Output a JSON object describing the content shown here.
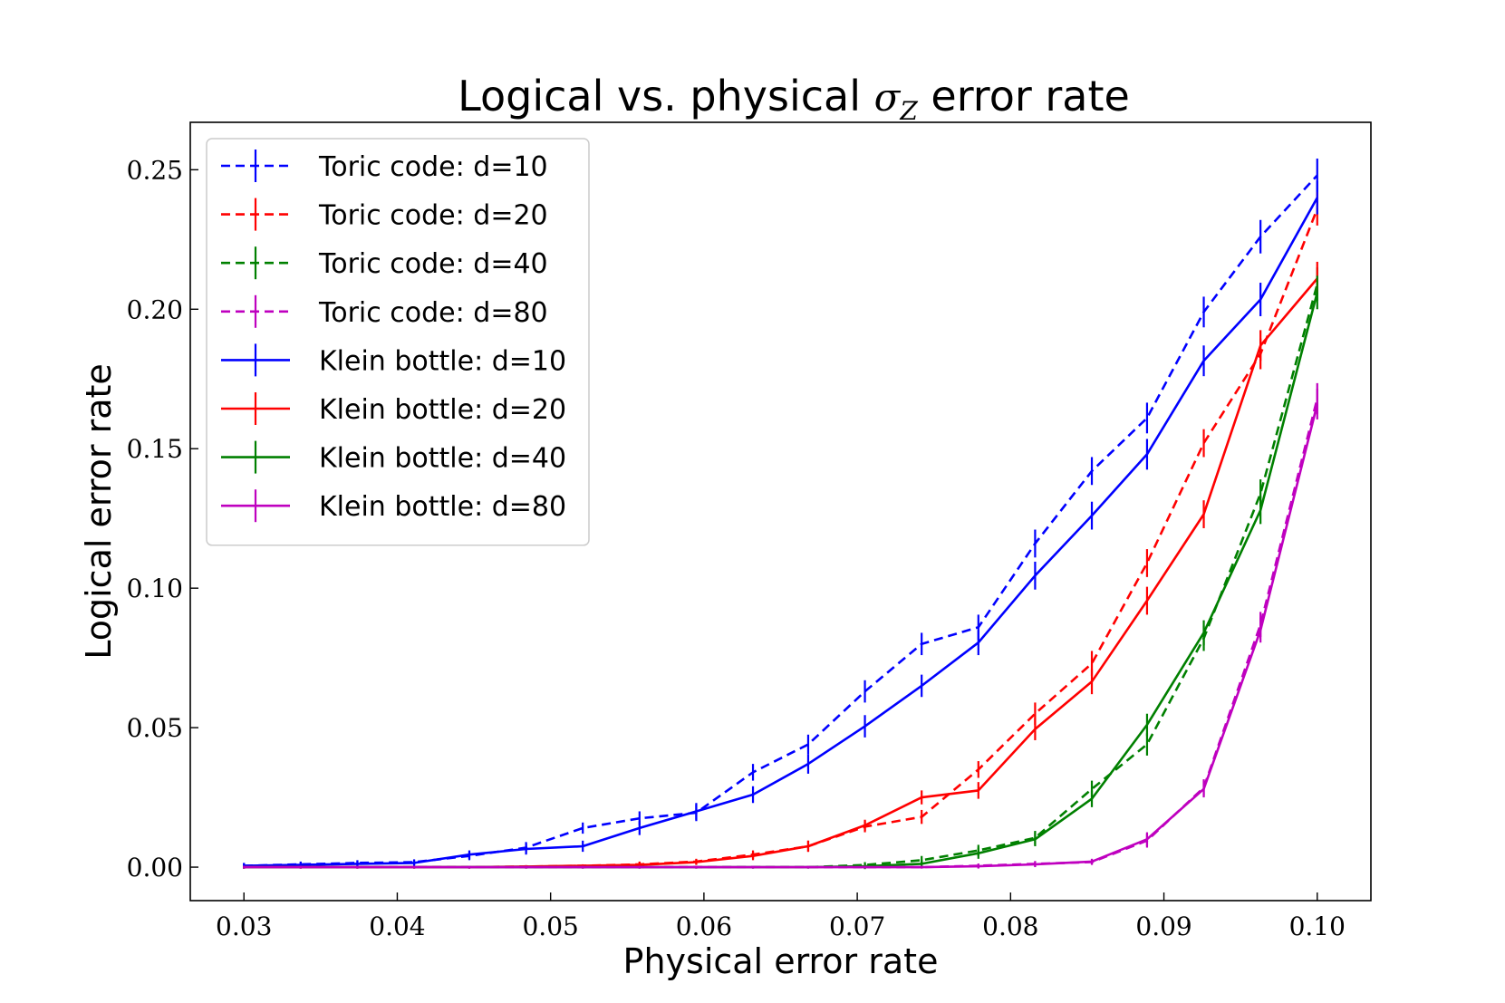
{
  "chart_data": {
    "type": "line",
    "title": {
      "prefix": "Logical vs. physical ",
      "symbol": "σ",
      "subscript": "Z",
      "suffix": " error rate"
    },
    "xlabel": "Physical error rate",
    "ylabel": "Logical error rate",
    "xlim": [
      0.0265,
      0.1035
    ],
    "ylim": [
      -0.012,
      0.267
    ],
    "xticks": [
      0.03,
      0.04,
      0.05,
      0.06,
      0.07,
      0.08,
      0.09,
      0.1
    ],
    "xtick_labels": [
      "0.03",
      "0.04",
      "0.05",
      "0.06",
      "0.07",
      "0.08",
      "0.09",
      "0.10"
    ],
    "yticks": [
      0.0,
      0.05,
      0.1,
      0.15,
      0.2,
      0.25
    ],
    "ytick_labels": [
      "0.00",
      "0.05",
      "0.10",
      "0.15",
      "0.20",
      "0.25"
    ],
    "legend_position": "upper-left",
    "x": [
      0.03,
      0.0337,
      0.0374,
      0.0411,
      0.0447,
      0.0484,
      0.0521,
      0.0558,
      0.0595,
      0.0632,
      0.0668,
      0.0705,
      0.0742,
      0.0779,
      0.0816,
      0.0853,
      0.0889,
      0.0926,
      0.0963,
      0.1
    ],
    "series": [
      {
        "name": "Toric code: d=10",
        "color": "#0000ff",
        "dash": true,
        "values": [
          0.0005,
          0.001,
          0.0015,
          0.0018,
          0.004,
          0.007,
          0.014,
          0.0175,
          0.0195,
          0.034,
          0.044,
          0.063,
          0.08,
          0.086,
          0.116,
          0.142,
          0.161,
          0.199,
          0.226,
          0.248
        ],
        "err": [
          0.001,
          0.001,
          0.001,
          0.001,
          0.0015,
          0.002,
          0.002,
          0.0025,
          0.003,
          0.003,
          0.0035,
          0.004,
          0.004,
          0.0045,
          0.005,
          0.005,
          0.0055,
          0.0055,
          0.006,
          0.006
        ]
      },
      {
        "name": "Toric code: d=20",
        "color": "#ff0000",
        "dash": true,
        "values": [
          0.0,
          0.0,
          0.0,
          0.0,
          0.0,
          0.0002,
          0.0005,
          0.001,
          0.002,
          0.0045,
          0.0075,
          0.0145,
          0.018,
          0.035,
          0.055,
          0.073,
          0.109,
          0.152,
          0.184,
          0.236
        ],
        "err": [
          0.0005,
          0.0005,
          0.0005,
          0.0005,
          0.0005,
          0.0005,
          0.0005,
          0.001,
          0.001,
          0.0015,
          0.002,
          0.002,
          0.0025,
          0.003,
          0.004,
          0.0045,
          0.005,
          0.005,
          0.0055,
          0.006
        ]
      },
      {
        "name": "Toric code: d=40",
        "color": "#008000",
        "dash": true,
        "values": [
          0.0,
          0.0,
          0.0,
          0.0,
          0.0,
          0.0,
          0.0,
          0.0,
          0.0,
          0.0,
          0.0,
          0.0008,
          0.0025,
          0.006,
          0.0105,
          0.028,
          0.044,
          0.082,
          0.134,
          0.209
        ],
        "err": [
          0.0005,
          0.0005,
          0.0005,
          0.0005,
          0.0005,
          0.0005,
          0.0005,
          0.0005,
          0.0005,
          0.0005,
          0.0005,
          0.001,
          0.0015,
          0.002,
          0.0025,
          0.003,
          0.004,
          0.0045,
          0.005,
          0.006
        ]
      },
      {
        "name": "Toric code: d=80",
        "color": "#bf00bf",
        "dash": true,
        "values": [
          0.0,
          0.0,
          0.0,
          0.0,
          0.0,
          0.0,
          0.0,
          0.0,
          0.0,
          0.0,
          0.0,
          0.0,
          0.0,
          0.0005,
          0.0012,
          0.0018,
          0.0095,
          0.0285,
          0.087,
          0.168
        ],
        "err": [
          0.0005,
          0.0005,
          0.0005,
          0.0005,
          0.0005,
          0.0005,
          0.0005,
          0.0005,
          0.0005,
          0.0005,
          0.0005,
          0.0005,
          0.0005,
          0.0008,
          0.001,
          0.001,
          0.0025,
          0.003,
          0.0045,
          0.0055
        ]
      },
      {
        "name": "Klein bottle: d=10",
        "color": "#0000ff",
        "dash": false,
        "values": [
          0.0005,
          0.0008,
          0.0012,
          0.0015,
          0.0045,
          0.0065,
          0.0075,
          0.014,
          0.02,
          0.026,
          0.037,
          0.0505,
          0.065,
          0.0805,
          0.1045,
          0.126,
          0.148,
          0.1815,
          0.2035,
          0.24
        ],
        "err": [
          0.001,
          0.001,
          0.001,
          0.001,
          0.0015,
          0.002,
          0.002,
          0.0025,
          0.003,
          0.003,
          0.0035,
          0.004,
          0.004,
          0.0045,
          0.005,
          0.005,
          0.0055,
          0.0055,
          0.006,
          0.006
        ]
      },
      {
        "name": "Klein bottle: d=20",
        "color": "#ff0000",
        "dash": false,
        "values": [
          0.0,
          0.0,
          0.0,
          0.0,
          0.0,
          0.0002,
          0.0005,
          0.0008,
          0.0018,
          0.004,
          0.0075,
          0.015,
          0.025,
          0.0275,
          0.0495,
          0.0665,
          0.0955,
          0.1265,
          0.187,
          0.211
        ],
        "err": [
          0.0005,
          0.0005,
          0.0005,
          0.0005,
          0.0005,
          0.0005,
          0.0005,
          0.001,
          0.001,
          0.0015,
          0.002,
          0.002,
          0.0025,
          0.003,
          0.004,
          0.0045,
          0.005,
          0.005,
          0.0055,
          0.006
        ]
      },
      {
        "name": "Klein bottle: d=40",
        "color": "#008000",
        "dash": false,
        "values": [
          0.0,
          0.0,
          0.0,
          0.0,
          0.0,
          0.0,
          0.0,
          0.0,
          0.0,
          0.0,
          0.0,
          0.0003,
          0.0012,
          0.005,
          0.01,
          0.0245,
          0.051,
          0.084,
          0.128,
          0.206
        ],
        "err": [
          0.0005,
          0.0005,
          0.0005,
          0.0005,
          0.0005,
          0.0005,
          0.0005,
          0.0005,
          0.0005,
          0.0005,
          0.0005,
          0.001,
          0.0015,
          0.002,
          0.0025,
          0.003,
          0.004,
          0.0045,
          0.005,
          0.006
        ]
      },
      {
        "name": "Klein bottle: d=80",
        "color": "#bf00bf",
        "dash": false,
        "values": [
          0.0,
          0.0,
          0.0,
          0.0,
          0.0,
          0.0,
          0.0,
          0.0,
          0.0,
          0.0,
          0.0,
          0.0,
          0.0,
          0.0003,
          0.001,
          0.002,
          0.01,
          0.028,
          0.085,
          0.166
        ],
        "err": [
          0.0005,
          0.0005,
          0.0005,
          0.0005,
          0.0005,
          0.0005,
          0.0005,
          0.0005,
          0.0005,
          0.0005,
          0.0005,
          0.0005,
          0.0005,
          0.0008,
          0.001,
          0.001,
          0.0025,
          0.003,
          0.0045,
          0.0055
        ]
      }
    ]
  }
}
